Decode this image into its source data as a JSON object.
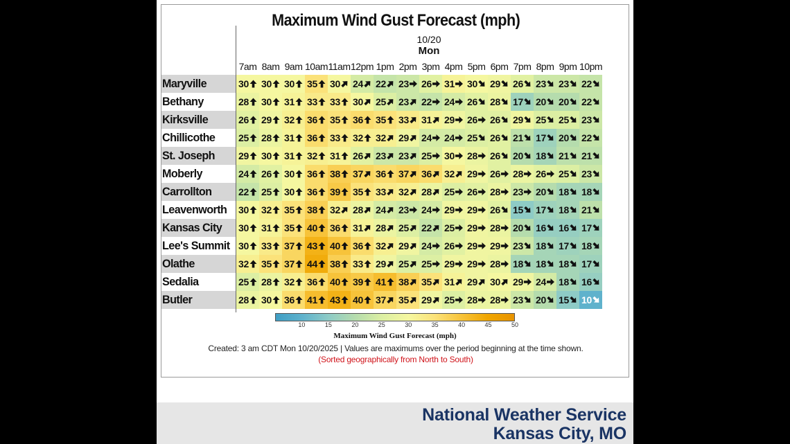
{
  "chart_data": {
    "type": "heatmap",
    "title": "Maximum Wind Gust Forecast (mph)",
    "date": "10/20",
    "day": "Mon",
    "x": [
      "7am",
      "8am",
      "9am",
      "10am",
      "11am",
      "12pm",
      "1pm",
      "2pm",
      "3pm",
      "4pm",
      "5pm",
      "6pm",
      "7pm",
      "8pm",
      "9pm",
      "10pm"
    ],
    "y": [
      "Maryville",
      "Bethany",
      "Kirksville",
      "Chillicothe",
      "St. Joseph",
      "Moberly",
      "Carrollton",
      "Leavenworth",
      "Kansas City",
      "Lee's Summit",
      "Olathe",
      "Sedalia",
      "Butler"
    ],
    "values": [
      [
        30,
        30,
        30,
        35,
        30,
        24,
        22,
        23,
        26,
        31,
        30,
        29,
        26,
        23,
        23,
        22
      ],
      [
        28,
        30,
        31,
        33,
        33,
        30,
        25,
        23,
        22,
        24,
        26,
        28,
        17,
        20,
        20,
        22
      ],
      [
        26,
        29,
        32,
        36,
        35,
        36,
        35,
        33,
        31,
        29,
        26,
        26,
        29,
        25,
        25,
        23
      ],
      [
        25,
        28,
        31,
        36,
        33,
        32,
        32,
        29,
        24,
        24,
        25,
        26,
        21,
        17,
        20,
        22
      ],
      [
        29,
        30,
        31,
        32,
        31,
        26,
        23,
        23,
        25,
        30,
        28,
        26,
        20,
        18,
        21,
        21
      ],
      [
        24,
        26,
        30,
        36,
        38,
        37,
        36,
        37,
        36,
        32,
        29,
        26,
        28,
        26,
        25,
        23
      ],
      [
        22,
        25,
        30,
        36,
        39,
        35,
        33,
        32,
        28,
        25,
        26,
        28,
        23,
        20,
        18,
        18
      ],
      [
        30,
        32,
        35,
        38,
        32,
        28,
        24,
        23,
        24,
        29,
        29,
        26,
        15,
        17,
        18,
        21
      ],
      [
        30,
        31,
        35,
        40,
        36,
        31,
        28,
        25,
        22,
        25,
        29,
        28,
        20,
        16,
        16,
        17
      ],
      [
        30,
        33,
        37,
        43,
        40,
        36,
        32,
        29,
        24,
        26,
        29,
        29,
        23,
        18,
        17,
        18
      ],
      [
        32,
        35,
        37,
        44,
        38,
        33,
        29,
        25,
        25,
        29,
        29,
        28,
        18,
        18,
        18,
        17
      ],
      [
        25,
        28,
        32,
        36,
        40,
        39,
        41,
        38,
        35,
        31,
        29,
        30,
        29,
        24,
        18,
        16
      ],
      [
        28,
        30,
        36,
        41,
        43,
        40,
        37,
        35,
        29,
        25,
        28,
        28,
        23,
        20,
        15,
        10
      ]
    ],
    "arrows": [
      [
        "N",
        "N",
        "N",
        "N",
        "NE",
        "NE",
        "NE",
        "E",
        "E",
        "E",
        "SE",
        "SE",
        "SE",
        "SE",
        "SE",
        "SE"
      ],
      [
        "N",
        "N",
        "N",
        "N",
        "N",
        "NE",
        "NE",
        "NE",
        "E",
        "E",
        "SE",
        "SE",
        "SE",
        "SE",
        "SE",
        "SE"
      ],
      [
        "N",
        "N",
        "N",
        "N",
        "N",
        "N",
        "N",
        "NE",
        "NE",
        "E",
        "E",
        "SE",
        "SE",
        "SE",
        "SE",
        "SE"
      ],
      [
        "N",
        "N",
        "N",
        "N",
        "N",
        "N",
        "NE",
        "NE",
        "E",
        "E",
        "SE",
        "SE",
        "SE",
        "SE",
        "SE",
        "SE"
      ],
      [
        "N",
        "N",
        "N",
        "N",
        "N",
        "NE",
        "NE",
        "NE",
        "E",
        "E",
        "E",
        "SE",
        "SE",
        "SE",
        "SE",
        "SE"
      ],
      [
        "N",
        "N",
        "N",
        "N",
        "N",
        "NE",
        "N",
        "NE",
        "NE",
        "NE",
        "E",
        "E",
        "E",
        "E",
        "SE",
        "SE"
      ],
      [
        "N",
        "N",
        "N",
        "N",
        "N",
        "N",
        "NE",
        "NE",
        "NE",
        "E",
        "E",
        "E",
        "E",
        "SE",
        "SE",
        "SE"
      ],
      [
        "N",
        "N",
        "N",
        "N",
        "NE",
        "NE",
        "NE",
        "E",
        "E",
        "E",
        "E",
        "SE",
        "SE",
        "SE",
        "SE",
        "SE"
      ],
      [
        "N",
        "N",
        "N",
        "N",
        "N",
        "NE",
        "NE",
        "NE",
        "NE",
        "E",
        "E",
        "E",
        "SE",
        "SE",
        "SE",
        "SE"
      ],
      [
        "N",
        "N",
        "N",
        "N",
        "N",
        "N",
        "NE",
        "NE",
        "E",
        "E",
        "E",
        "E",
        "SE",
        "SE",
        "SE",
        "SE"
      ],
      [
        "N",
        "N",
        "N",
        "N",
        "N",
        "N",
        "NE",
        "NE",
        "E",
        "E",
        "E",
        "E",
        "SE",
        "SE",
        "SE",
        "SE"
      ],
      [
        "N",
        "N",
        "N",
        "N",
        "N",
        "N",
        "N",
        "NE",
        "NE",
        "NE",
        "NE",
        "NE",
        "E",
        "E",
        "SE",
        "SE"
      ],
      [
        "N",
        "N",
        "N",
        "N",
        "N",
        "N",
        "NE",
        "NE",
        "NE",
        "E",
        "E",
        "E",
        "SE",
        "SE",
        "SE",
        "SE"
      ]
    ],
    "legend": {
      "title": "Maximum Wind Gust Forecast (mph)",
      "ticks": [
        10,
        15,
        20,
        25,
        30,
        35,
        40,
        45,
        50
      ],
      "range": [
        5,
        50
      ]
    },
    "colors": {
      "5": "#3f9ec4",
      "10": "#5fb2cc",
      "15": "#8ecbc6",
      "20": "#b5dcad",
      "25": "#dcefa3",
      "30": "#f5f7a0",
      "35": "#fbe27a",
      "40": "#f7c33a",
      "45": "#f0a600",
      "50": "#e89300"
    },
    "row_shading": "alternating",
    "footnote": "Created: 3 am CDT Mon 10/20/2025  |  Values are maximums over the period beginning at the time shown.",
    "sort_note": "(Sorted geographically from North to South)"
  },
  "branding": {
    "name": "National Weather Service",
    "office": "Kansas City, MO"
  }
}
